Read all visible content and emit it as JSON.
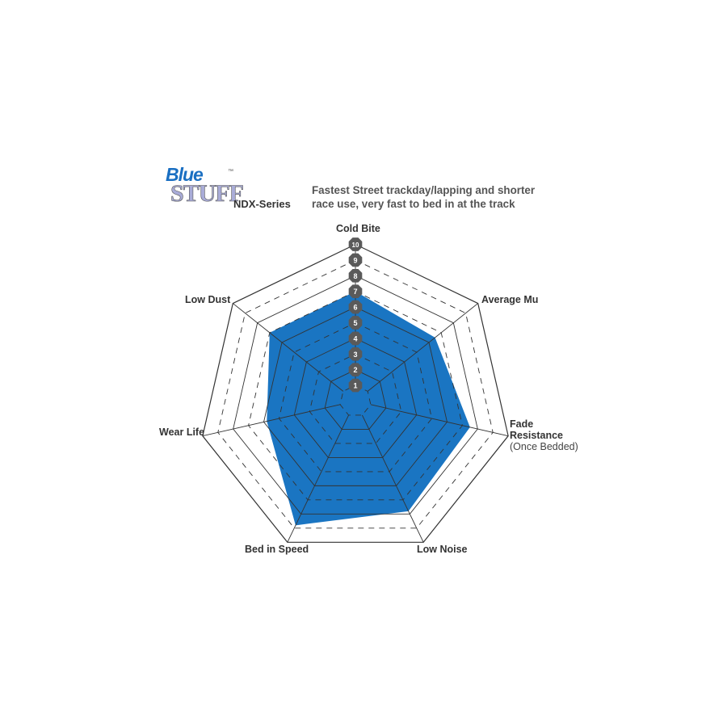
{
  "logo": {
    "line1": "Blue",
    "line2": "STUFF",
    "tm": "™"
  },
  "series_name": "NDX-Series",
  "description": [
    "Fastest Street trackday/lapping and shorter",
    "race use, very fast to bed in at the track"
  ],
  "chart_data": {
    "type": "radar",
    "axes": [
      "Cold Bite",
      "Average Mu",
      "Fade Resistance",
      "Low Noise",
      "Bed in Speed",
      "Wear Life",
      "Low Dust"
    ],
    "axis_sublabel": {
      "Fade Resistance": "(Once Bedded)"
    },
    "values": [
      7,
      6.5,
      7.5,
      7.8,
      8.8,
      5.8,
      7
    ],
    "scale_ticks": [
      1,
      2,
      3,
      4,
      5,
      6,
      7,
      8,
      9,
      10
    ],
    "range": [
      0,
      10
    ],
    "fill_color": "#1a75c2",
    "grid_color": "#333333",
    "tick_badge_color": "#5a5a5a"
  }
}
